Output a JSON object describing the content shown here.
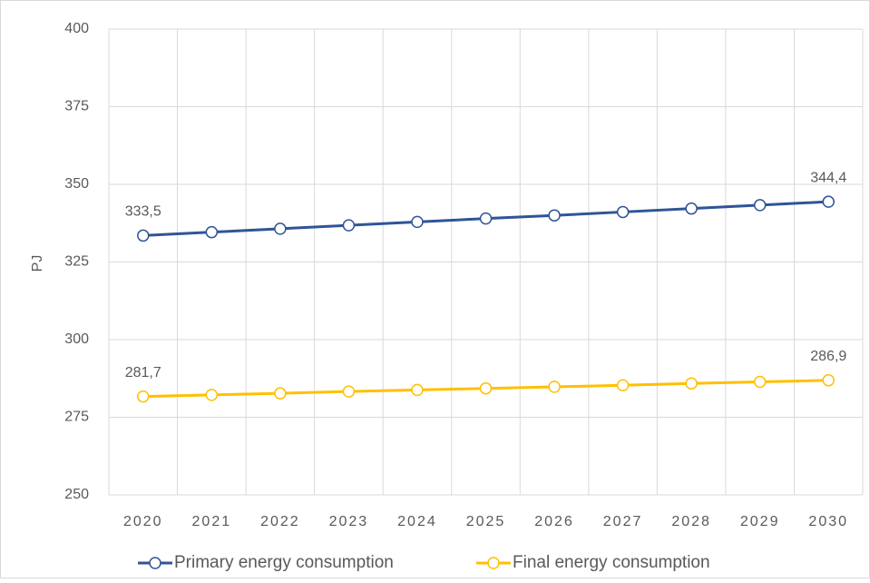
{
  "chart_data": {
    "type": "line",
    "y_label": "PJ",
    "categories": [
      "2020",
      "2021",
      "2022",
      "2023",
      "2024",
      "2025",
      "2026",
      "2027",
      "2028",
      "2029",
      "2030"
    ],
    "series": [
      {
        "name": "Primary energy consumption",
        "color": "#2f5597",
        "values": [
          333.5,
          334.6,
          335.7,
          336.8,
          337.9,
          339.0,
          340.0,
          341.1,
          342.2,
          343.3,
          344.4
        ],
        "value_labels": [
          "333,5",
          null,
          null,
          null,
          null,
          null,
          null,
          null,
          null,
          null,
          "344,4"
        ]
      },
      {
        "name": "Final energy consumption",
        "color": "#ffc000",
        "values": [
          281.7,
          282.2,
          282.7,
          283.3,
          283.8,
          284.3,
          284.8,
          285.3,
          285.9,
          286.4,
          286.9
        ],
        "value_labels": [
          "281,7",
          null,
          null,
          null,
          null,
          null,
          null,
          null,
          null,
          null,
          "286,9"
        ]
      }
    ],
    "ylim": [
      250,
      400
    ],
    "yticks": [
      250,
      275,
      300,
      325,
      350,
      375,
      400
    ],
    "grid": true,
    "legend": "bottom"
  }
}
